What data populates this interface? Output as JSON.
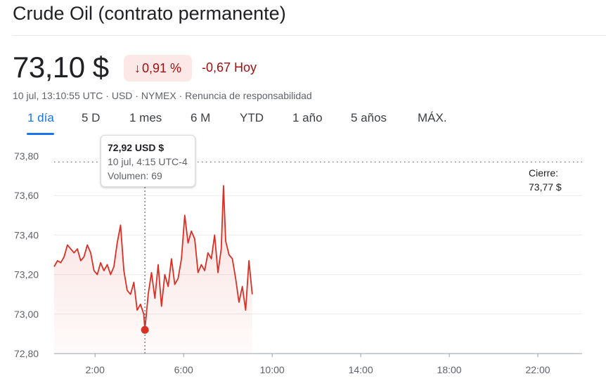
{
  "header": {
    "title": "Crude Oil (contrato permanente)",
    "price": "73,10 $",
    "change_arrow": "arrow-down-icon",
    "change_pct": "0,91 %",
    "change_abs": "-0,67 Hoy",
    "meta_time": "10 jul, 13:10:55 UTC",
    "meta_sep": " · ",
    "meta_currency": "USD",
    "meta_exchange": "NYMEX",
    "meta_disclaimer": "Renuncia de responsabilidad"
  },
  "tabs": [
    {
      "label": "1 día",
      "active": true
    },
    {
      "label": "5 D",
      "active": false
    },
    {
      "label": "1 mes",
      "active": false
    },
    {
      "label": "6 M",
      "active": false
    },
    {
      "label": "YTD",
      "active": false
    },
    {
      "label": "1 año",
      "active": false
    },
    {
      "label": "5 años",
      "active": false
    },
    {
      "label": "MÁX.",
      "active": false
    }
  ],
  "tooltip": {
    "price": "72,92 USD $",
    "time": "10 jul, 4:15 UTC-4",
    "volume": "Volumen: 69"
  },
  "close": {
    "label": "Cierre:",
    "value": "73,77 $"
  },
  "colors": {
    "line": "#d93025",
    "fill": "#fce8e6",
    "down": "#a50e0e",
    "accent": "#1a73e8"
  },
  "chart_data": {
    "type": "line",
    "y_ticks": [
      "73,80",
      "73,60",
      "73,40",
      "73,20",
      "73,00",
      "72,80"
    ],
    "y_tick_values": [
      73.8,
      73.6,
      73.4,
      73.2,
      73.0,
      72.8
    ],
    "x_ticks": [
      "2:00",
      "6:00",
      "10:00",
      "14:00",
      "18:00",
      "22:00"
    ],
    "x_tick_values": [
      2,
      6,
      10,
      14,
      18,
      22
    ],
    "xlim": [
      0.15,
      24.0
    ],
    "ylim": [
      72.8,
      73.8
    ],
    "previous_close": 73.77,
    "selected_point": {
      "x": 4.25,
      "y": 72.92
    },
    "series": [
      {
        "x": [
          0.15,
          0.3,
          0.45,
          0.6,
          0.75,
          0.9,
          1.05,
          1.2,
          1.35,
          1.5,
          1.65,
          1.8,
          1.95,
          2.1,
          2.25,
          2.4,
          2.55,
          2.7,
          2.85,
          3.0,
          3.15,
          3.3,
          3.45,
          3.6,
          3.75,
          3.9,
          4.05,
          4.2,
          4.25,
          4.4,
          4.55,
          4.7,
          4.85,
          5.0,
          5.15,
          5.3,
          5.45,
          5.6,
          5.75,
          5.9,
          6.05,
          6.2,
          6.35,
          6.5,
          6.65,
          6.8,
          6.95,
          7.1,
          7.25,
          7.4,
          7.55,
          7.7,
          7.8,
          7.9,
          8.05,
          8.2,
          8.35,
          8.5,
          8.65,
          8.8,
          8.95,
          9.1
        ],
        "y": [
          73.24,
          73.27,
          73.26,
          73.29,
          73.35,
          73.33,
          73.31,
          73.33,
          73.27,
          73.29,
          73.35,
          73.31,
          73.22,
          73.2,
          73.26,
          73.22,
          73.25,
          73.2,
          73.24,
          73.36,
          73.45,
          73.22,
          73.12,
          73.1,
          73.16,
          73.02,
          73.05,
          73.0,
          72.92,
          73.1,
          73.21,
          73.08,
          73.25,
          73.04,
          73.2,
          73.14,
          73.28,
          73.15,
          73.18,
          73.28,
          73.5,
          73.36,
          73.42,
          73.38,
          73.21,
          73.25,
          73.22,
          73.31,
          73.28,
          73.4,
          73.21,
          73.33,
          73.65,
          73.37,
          73.3,
          73.28,
          73.18,
          73.06,
          73.14,
          73.02,
          73.27,
          73.1
        ]
      }
    ]
  }
}
